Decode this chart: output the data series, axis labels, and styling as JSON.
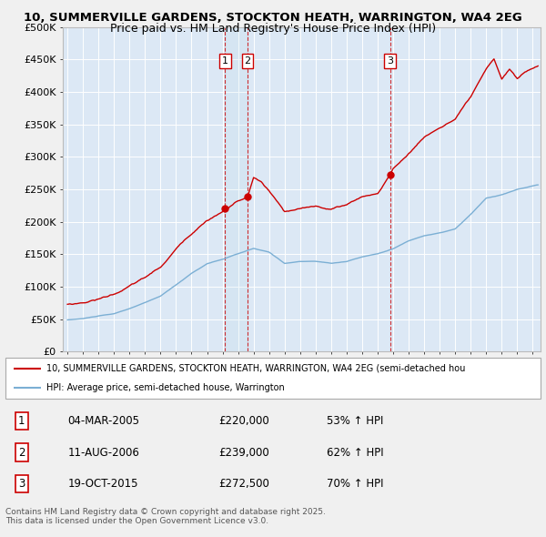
{
  "title_line1": "10, SUMMERVILLE GARDENS, STOCKTON HEATH, WARRINGTON, WA4 2EG",
  "title_line2": "Price paid vs. HM Land Registry's House Price Index (HPI)",
  "bg_color": "#f0f0f0",
  "plot_bg_color": "#dce8f5",
  "red_color": "#cc0000",
  "blue_color": "#7bafd4",
  "grid_color": "#ffffff",
  "ylim": [
    0,
    500000
  ],
  "yticks": [
    0,
    50000,
    100000,
    150000,
    200000,
    250000,
    300000,
    350000,
    400000,
    450000,
    500000
  ],
  "ytick_labels": [
    "£0",
    "£50K",
    "£100K",
    "£150K",
    "£200K",
    "£250K",
    "£300K",
    "£350K",
    "£400K",
    "£450K",
    "£500K"
  ],
  "xlim_start": 1994.7,
  "xlim_end": 2025.5,
  "sale_dates": [
    2005.17,
    2006.61,
    2015.8
  ],
  "sale_prices": [
    220000,
    239000,
    272500
  ],
  "sale_labels": [
    "1",
    "2",
    "3"
  ],
  "sale_info": [
    {
      "num": "1",
      "date": "04-MAR-2005",
      "price": "£220,000",
      "hpi": "53% ↑ HPI"
    },
    {
      "num": "2",
      "date": "11-AUG-2006",
      "price": "£239,000",
      "hpi": "62% ↑ HPI"
    },
    {
      "num": "3",
      "date": "19-OCT-2015",
      "price": "£272,500",
      "hpi": "70% ↑ HPI"
    }
  ],
  "legend_label_red": "10, SUMMERVILLE GARDENS, STOCKTON HEATH, WARRINGTON, WA4 2EG (semi-detached hou",
  "legend_label_blue": "HPI: Average price, semi-detached house, Warrington",
  "footer": "Contains HM Land Registry data © Crown copyright and database right 2025.\nThis data is licensed under the Open Government Licence v3.0."
}
